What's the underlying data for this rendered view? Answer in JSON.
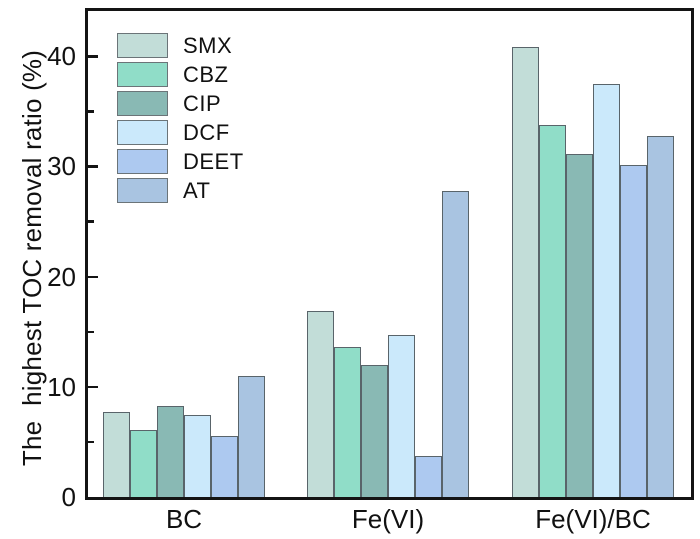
{
  "figure": {
    "background_color": "#ffffff",
    "axis_color": "#141414",
    "bar_border_color": "#59646a"
  },
  "chart_data": {
    "type": "bar",
    "title": "",
    "xlabel": "",
    "ylabel": "The  highest TOC removal ratio (%)",
    "categories": [
      "BC",
      "Fe(VI)",
      "Fe(VI)/BC"
    ],
    "series": [
      {
        "name": "SMX",
        "color": "#c2ddd8",
        "values": [
          7.7,
          16.9,
          40.8
        ]
      },
      {
        "name": "CBZ",
        "color": "#90ddc8",
        "values": [
          6.1,
          13.6,
          33.8
        ]
      },
      {
        "name": "CIP",
        "color": "#89b9b4",
        "values": [
          8.3,
          12.0,
          31.1
        ]
      },
      {
        "name": "DCF",
        "color": "#cbe9fb",
        "values": [
          7.4,
          14.7,
          37.5
        ]
      },
      {
        "name": "DEET",
        "color": "#adc9f0",
        "values": [
          5.5,
          3.7,
          30.1
        ]
      },
      {
        "name": "AT",
        "color": "#a9c4e1",
        "values": [
          11.0,
          27.8,
          32.8
        ]
      }
    ],
    "ylim": [
      0,
      44.1
    ],
    "yticks_major": [
      0,
      10,
      20,
      30,
      40
    ],
    "yticks_minor": [
      5,
      15,
      25,
      35
    ],
    "legend_position": "top-left-inside",
    "grid": false
  }
}
